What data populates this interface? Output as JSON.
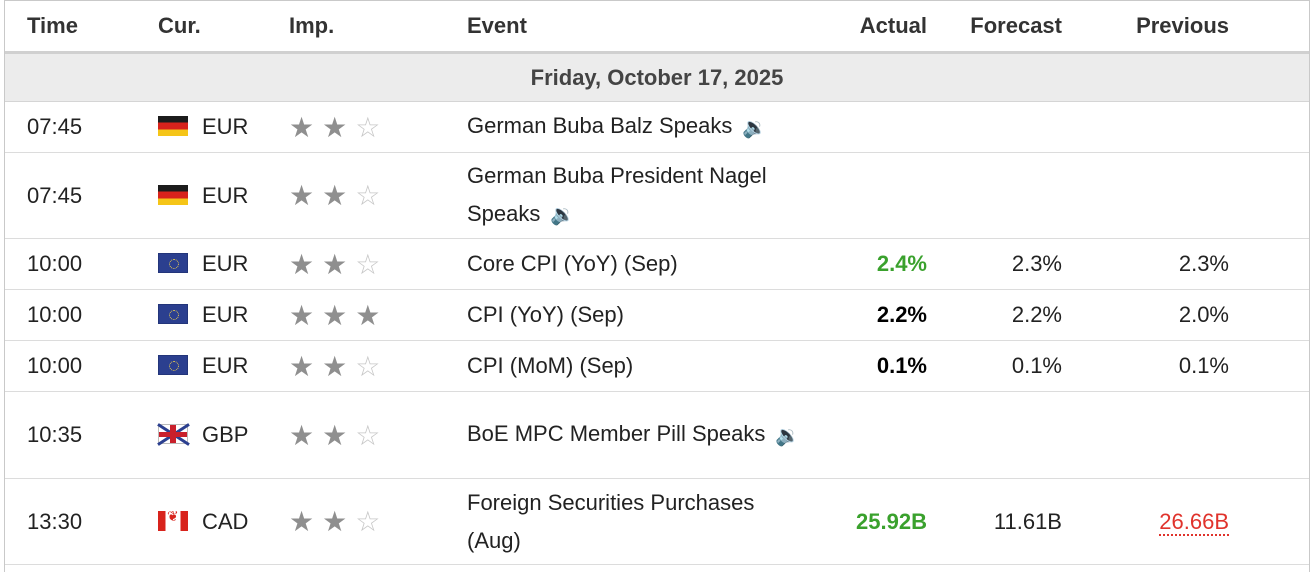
{
  "headers": {
    "time": "Time",
    "cur": "Cur.",
    "imp": "Imp.",
    "event": "Event",
    "actual": "Actual",
    "forecast": "Forecast",
    "previous": "Previous"
  },
  "date_label": "Friday, October 17, 2025",
  "colors": {
    "positive": "#3aa12d",
    "negative": "#e0332c",
    "date_row_bg": "#ececec"
  },
  "icons": {
    "speaker": "speaker-icon",
    "star_filled": "star-filled-icon",
    "star_empty": "star-empty-icon"
  },
  "rows": [
    {
      "time": "07:45",
      "currency": "EUR",
      "flag": "germany",
      "importance": 2,
      "event": "German Buba Balz Speaks",
      "speech": true,
      "actual": "",
      "forecast": "",
      "previous": ""
    },
    {
      "time": "07:45",
      "currency": "EUR",
      "flag": "germany",
      "importance": 2,
      "event": "German Buba President Nagel Speaks",
      "speech": true,
      "actual": "",
      "forecast": "",
      "previous": ""
    },
    {
      "time": "10:00",
      "currency": "EUR",
      "flag": "european-union",
      "importance": 2,
      "event": "Core CPI (YoY) (Sep)",
      "speech": false,
      "actual": "2.4%",
      "actual_color": "positive",
      "forecast": "2.3%",
      "previous": "2.3%"
    },
    {
      "time": "10:00",
      "currency": "EUR",
      "flag": "european-union",
      "importance": 3,
      "event": "CPI (YoY) (Sep)",
      "speech": false,
      "actual": "2.2%",
      "actual_color": "neutral",
      "forecast": "2.2%",
      "previous": "2.0%"
    },
    {
      "time": "10:00",
      "currency": "EUR",
      "flag": "european-union",
      "importance": 2,
      "event": "CPI (MoM) (Sep)",
      "speech": false,
      "actual": "0.1%",
      "actual_color": "neutral",
      "forecast": "0.1%",
      "previous": "0.1%"
    },
    {
      "time": "10:35",
      "currency": "GBP",
      "flag": "united-kingdom",
      "importance": 2,
      "event": "BoE MPC Member Pill Speaks",
      "speech": true,
      "actual": "",
      "forecast": "",
      "previous": ""
    },
    {
      "time": "13:30",
      "currency": "CAD",
      "flag": "canada",
      "importance": 2,
      "event": "Foreign Securities Purchases (Aug)",
      "speech": false,
      "actual": "25.92B",
      "actual_color": "positive",
      "forecast": "11.61B",
      "previous": "26.66B",
      "previous_revised": true
    }
  ]
}
